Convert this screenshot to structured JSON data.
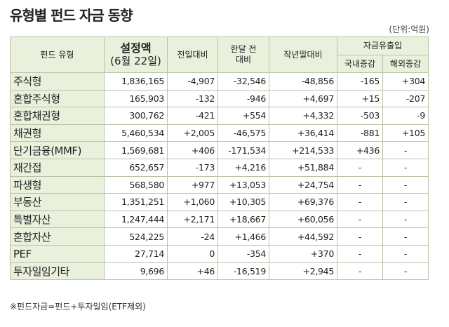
{
  "header": {
    "title": "유형별 펀드 자금 동향",
    "unit": "(단위:억원)"
  },
  "table": {
    "head": {
      "type": "펀드 유형",
      "amount": [
        "설정액",
        "(6월 22일)"
      ],
      "prev_day": "전일대비",
      "month": [
        "한달 전",
        "대비"
      ],
      "year_end": "작년말대비",
      "flow": "자금유출입",
      "domestic": "국내증감",
      "overseas": "해외증감"
    },
    "rows": [
      [
        "주식형",
        "1,836,165",
        "-4,907",
        "-32,546",
        "-48,856",
        "-165",
        "+304"
      ],
      [
        "혼합주식형",
        "165,903",
        "-132",
        "-946",
        "+4,697",
        "+15",
        "-207"
      ],
      [
        "혼합채권형",
        "300,762",
        "-421",
        "+554",
        "+4,332",
        "-503",
        "-9"
      ],
      [
        "채권형",
        "5,460,534",
        "+2,005",
        "-46,575",
        "+36,414",
        "-881",
        "+105"
      ],
      [
        "단기금융(MMF)",
        "1,569,681",
        "+406",
        "-171,534",
        "+214,533",
        "+436",
        "-"
      ],
      [
        "재간접",
        "652,657",
        "-173",
        "+4,216",
        "+51,884",
        "-",
        "-"
      ],
      [
        "파생형",
        "568,580",
        "+977",
        "+13,053",
        "+24,754",
        "-",
        "-"
      ],
      [
        "부동산",
        "1,351,251",
        "+1,060",
        "+10,305",
        "+69,376",
        "-",
        "-"
      ],
      [
        "특별자산",
        "1,247,444",
        "+2,171",
        "+18,667",
        "+60,056",
        "-",
        "-"
      ],
      [
        "혼합자산",
        "524,225",
        "-24",
        "+1,466",
        "+44,592",
        "-",
        "-"
      ],
      [
        "PEF",
        "27,714",
        "0",
        "-354",
        "+370",
        "-",
        "-"
      ],
      [
        "투자일임기타",
        "9,696",
        "+46",
        "-16,519",
        "+2,945",
        "-",
        "-"
      ]
    ]
  },
  "footnote": "※펀드자금=펀드+투자일임(ETF제외)"
}
